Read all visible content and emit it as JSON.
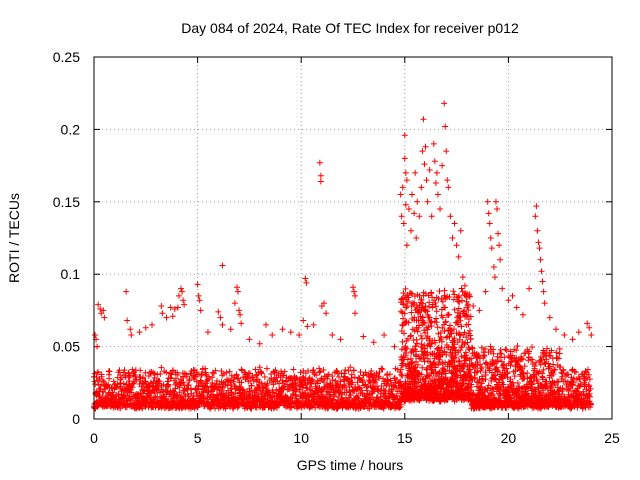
{
  "chart_data": {
    "type": "scatter",
    "title": "Day 084 of 2024, Rate Of TEC Index for receiver p012",
    "xlabel": "GPS time / hours",
    "ylabel": "ROTI / TECUs",
    "xlim": [
      0,
      25
    ],
    "ylim": [
      0,
      0.25
    ],
    "x_ticks": [
      0,
      5,
      10,
      15,
      20,
      25
    ],
    "x_tick_labels": [
      "0",
      "5",
      "10",
      "15",
      "20",
      "25"
    ],
    "y_ticks": [
      0,
      0.05,
      0.1,
      0.15,
      0.2,
      0.25
    ],
    "y_tick_labels": [
      "0",
      "0.05",
      "0.1",
      "0.15",
      "0.2",
      "0.25"
    ],
    "grid": true,
    "marker": "+",
    "color": "#ff0000",
    "series": [
      {
        "name": "ROTI",
        "points": [
          [
            0.05,
            0.058
          ],
          [
            0.1,
            0.055
          ],
          [
            0.15,
            0.05
          ],
          [
            0.2,
            0.079
          ],
          [
            0.3,
            0.076
          ],
          [
            0.35,
            0.073
          ],
          [
            0.45,
            0.075
          ],
          [
            0.5,
            0.07
          ],
          [
            1.55,
            0.088
          ],
          [
            1.6,
            0.068
          ],
          [
            1.75,
            0.062
          ],
          [
            1.8,
            0.058
          ],
          [
            2.2,
            0.06
          ],
          [
            2.5,
            0.063
          ],
          [
            2.8,
            0.065
          ],
          [
            3.25,
            0.078
          ],
          [
            3.3,
            0.073
          ],
          [
            3.5,
            0.07
          ],
          [
            3.7,
            0.077
          ],
          [
            3.8,
            0.071
          ],
          [
            3.9,
            0.076
          ],
          [
            4.05,
            0.077
          ],
          [
            4.1,
            0.085
          ],
          [
            4.2,
            0.09
          ],
          [
            4.25,
            0.088
          ],
          [
            4.3,
            0.082
          ],
          [
            4.35,
            0.079
          ],
          [
            5.0,
            0.093
          ],
          [
            5.05,
            0.085
          ],
          [
            5.1,
            0.082
          ],
          [
            5.15,
            0.075
          ],
          [
            5.5,
            0.06
          ],
          [
            6.0,
            0.074
          ],
          [
            6.1,
            0.07
          ],
          [
            6.2,
            0.065
          ],
          [
            6.2,
            0.106
          ],
          [
            6.6,
            0.062
          ],
          [
            6.8,
            0.08
          ],
          [
            6.9,
            0.091
          ],
          [
            6.95,
            0.088
          ],
          [
            7.0,
            0.075
          ],
          [
            7.05,
            0.072
          ],
          [
            7.1,
            0.066
          ],
          [
            7.5,
            0.055
          ],
          [
            8.0,
            0.052
          ],
          [
            8.3,
            0.065
          ],
          [
            8.6,
            0.058
          ],
          [
            9.1,
            0.062
          ],
          [
            9.5,
            0.06
          ],
          [
            9.9,
            0.058
          ],
          [
            10.1,
            0.068
          ],
          [
            10.2,
            0.097
          ],
          [
            10.25,
            0.094
          ],
          [
            10.3,
            0.064
          ],
          [
            10.6,
            0.065
          ],
          [
            10.9,
            0.177
          ],
          [
            10.95,
            0.168
          ],
          [
            10.95,
            0.164
          ],
          [
            11.0,
            0.078
          ],
          [
            11.1,
            0.08
          ],
          [
            11.2,
            0.073
          ],
          [
            11.5,
            0.058
          ],
          [
            11.9,
            0.055
          ],
          [
            12.5,
            0.091
          ],
          [
            12.55,
            0.088
          ],
          [
            12.6,
            0.085
          ],
          [
            12.6,
            0.073
          ],
          [
            13.0,
            0.057
          ],
          [
            13.5,
            0.053
          ],
          [
            14.0,
            0.058
          ],
          [
            14.5,
            0.05
          ],
          [
            14.8,
            0.155
          ],
          [
            14.85,
            0.14
          ],
          [
            14.9,
            0.16
          ],
          [
            14.95,
            0.135
          ],
          [
            15.0,
            0.196
          ],
          [
            15.0,
            0.18
          ],
          [
            15.05,
            0.17
          ],
          [
            15.05,
            0.148
          ],
          [
            15.1,
            0.165
          ],
          [
            15.1,
            0.12
          ],
          [
            15.2,
            0.145
          ],
          [
            15.3,
            0.13
          ],
          [
            15.35,
            0.155
          ],
          [
            15.45,
            0.142
          ],
          [
            15.5,
            0.17
          ],
          [
            15.55,
            0.125
          ],
          [
            15.6,
            0.15
          ],
          [
            15.7,
            0.14
          ],
          [
            15.8,
            0.16
          ],
          [
            15.85,
            0.185
          ],
          [
            15.9,
            0.207
          ],
          [
            15.95,
            0.176
          ],
          [
            16.0,
            0.188
          ],
          [
            16.05,
            0.165
          ],
          [
            16.1,
            0.15
          ],
          [
            16.2,
            0.172
          ],
          [
            16.3,
            0.14
          ],
          [
            16.4,
            0.19
          ],
          [
            16.45,
            0.178
          ],
          [
            16.5,
            0.163
          ],
          [
            16.55,
            0.17
          ],
          [
            16.6,
            0.155
          ],
          [
            16.7,
            0.145
          ],
          [
            16.8,
            0.175
          ],
          [
            16.9,
            0.218
          ],
          [
            16.95,
            0.202
          ],
          [
            17.0,
            0.185
          ],
          [
            17.05,
            0.165
          ],
          [
            17.1,
            0.16
          ],
          [
            17.2,
            0.14
          ],
          [
            17.3,
            0.125
          ],
          [
            17.4,
            0.135
          ],
          [
            17.5,
            0.12
          ],
          [
            17.6,
            0.112
          ],
          [
            17.7,
            0.13
          ],
          [
            17.8,
            0.098
          ],
          [
            17.9,
            0.092
          ],
          [
            18.1,
            0.085
          ],
          [
            18.3,
            0.078
          ],
          [
            18.6,
            0.075
          ],
          [
            18.9,
            0.088
          ],
          [
            19.0,
            0.15
          ],
          [
            19.05,
            0.142
          ],
          [
            19.1,
            0.135
          ],
          [
            19.15,
            0.125
          ],
          [
            19.2,
            0.118
          ],
          [
            19.3,
            0.105
          ],
          [
            19.35,
            0.098
          ],
          [
            19.4,
            0.15
          ],
          [
            19.45,
            0.145
          ],
          [
            19.5,
            0.128
          ],
          [
            19.55,
            0.12
          ],
          [
            19.6,
            0.11
          ],
          [
            19.7,
            0.09
          ],
          [
            20.0,
            0.082
          ],
          [
            20.2,
            0.085
          ],
          [
            20.4,
            0.077
          ],
          [
            20.7,
            0.072
          ],
          [
            21.0,
            0.09
          ],
          [
            21.3,
            0.14
          ],
          [
            21.35,
            0.147
          ],
          [
            21.4,
            0.13
          ],
          [
            21.45,
            0.122
          ],
          [
            21.5,
            0.118
          ],
          [
            21.55,
            0.11
          ],
          [
            21.6,
            0.102
          ],
          [
            21.65,
            0.095
          ],
          [
            21.7,
            0.088
          ],
          [
            21.75,
            0.08
          ],
          [
            22.0,
            0.07
          ],
          [
            22.3,
            0.062
          ],
          [
            22.7,
            0.058
          ],
          [
            23.1,
            0.055
          ],
          [
            23.4,
            0.06
          ],
          [
            23.8,
            0.066
          ],
          [
            23.9,
            0.063
          ],
          [
            24.0,
            0.058
          ]
        ]
      }
    ]
  }
}
